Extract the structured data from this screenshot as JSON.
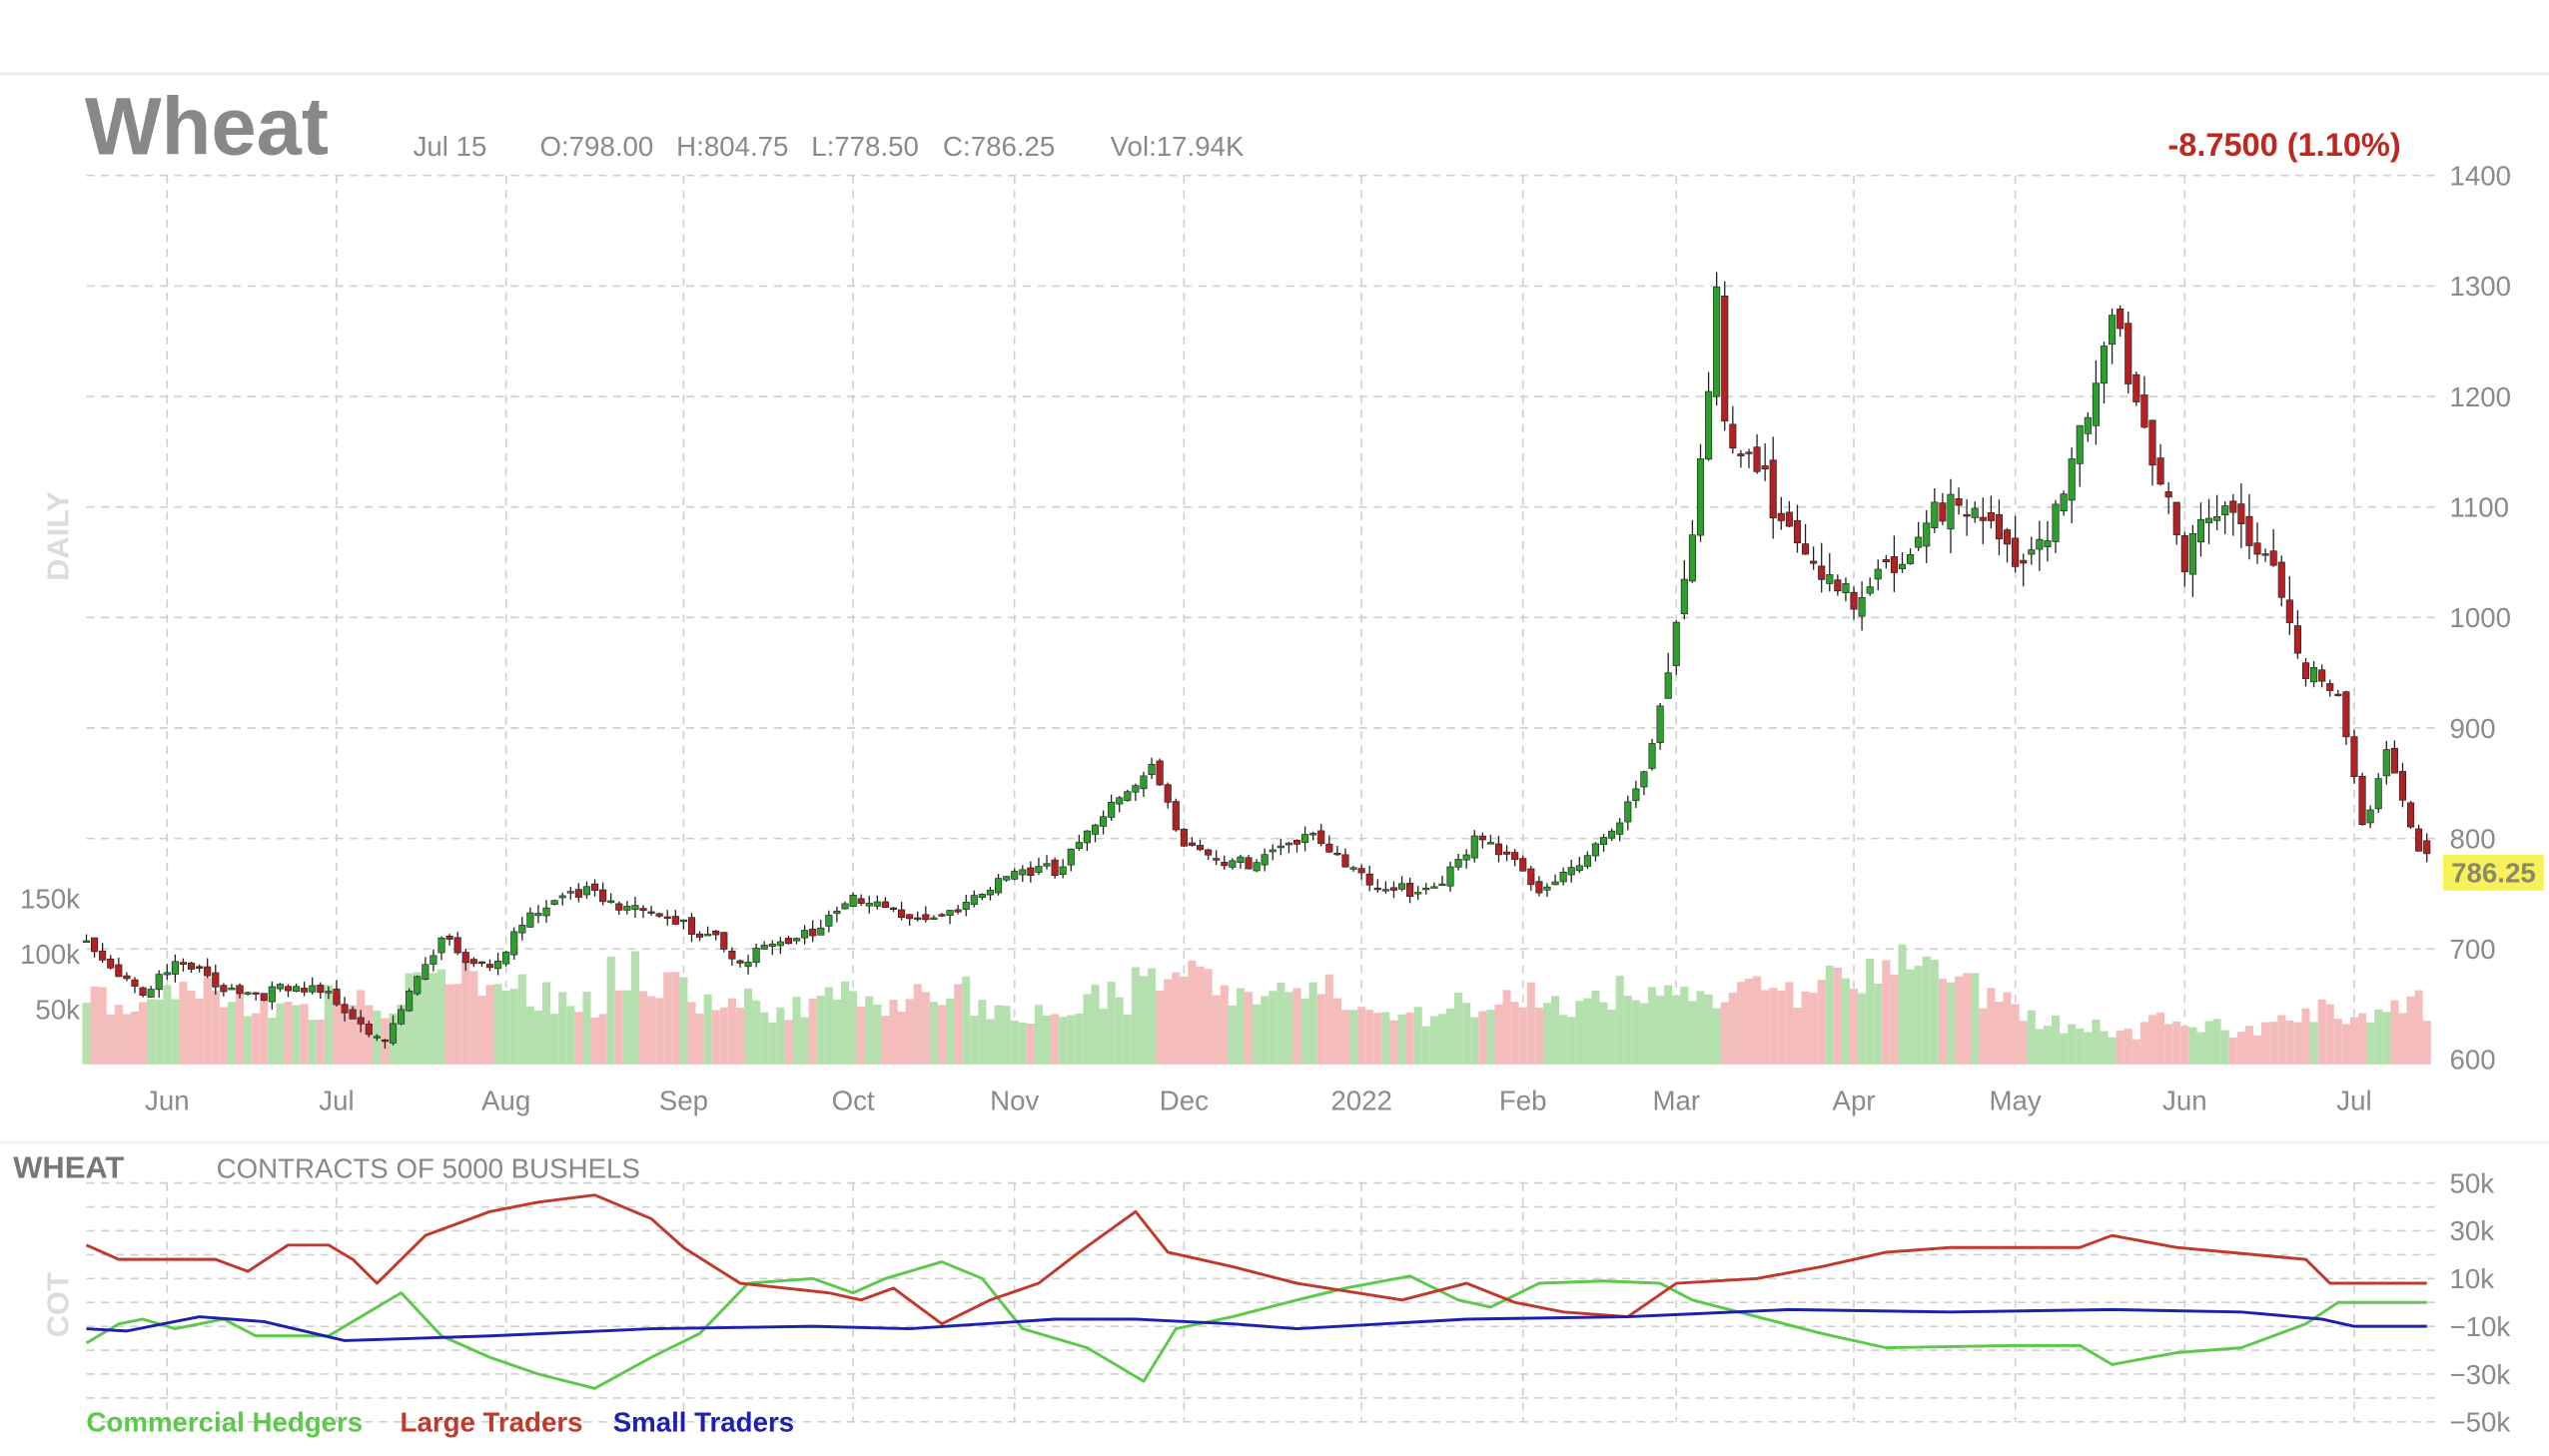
{
  "header": {
    "title": "Wheat",
    "date": "Jul 15",
    "open": "O:798.00",
    "high": "H:804.75",
    "low": "L:778.50",
    "close": "C:786.25",
    "volume": "Vol:17.94K",
    "change": "-8.7500 (1.10%)",
    "last_price": "786.25",
    "panel_label": "DAILY"
  },
  "cot": {
    "title": "WHEAT",
    "subtitle": "CONTRACTS OF 5000 BUSHELS",
    "panel_label": "COT",
    "legend": [
      "Commercial Hedgers",
      "Large Traders",
      "Small Traders"
    ]
  },
  "colors": {
    "up": "#2e9e2e",
    "down": "#b22222",
    "vol_up": "#b4e0ad",
    "vol_down": "#f5bcbc",
    "change": "#c0281f",
    "commercial": "#5cc94a",
    "large": "#c0392b",
    "small": "#1f1fb0",
    "price_tag_bg": "#f7f25a"
  },
  "chart_data": [
    {
      "type": "candlestick",
      "title": "Wheat",
      "ylim": [
        600,
        1400
      ],
      "y_ticks": [
        600,
        700,
        800,
        900,
        1000,
        1100,
        1200,
        1300,
        1400
      ],
      "x_ticks": [
        {
          "label": "Jun",
          "day": 10
        },
        {
          "label": "Jul",
          "day": 31
        },
        {
          "label": "Aug",
          "day": 52
        },
        {
          "label": "Sep",
          "day": 74
        },
        {
          "label": "Oct",
          "day": 95
        },
        {
          "label": "Nov",
          "day": 115
        },
        {
          "label": "Dec",
          "day": 136
        },
        {
          "label": "2022",
          "day": 158
        },
        {
          "label": "Feb",
          "day": 178
        },
        {
          "label": "Mar",
          "day": 197
        },
        {
          "label": "Apr",
          "day": 219
        },
        {
          "label": "May",
          "day": 239
        },
        {
          "label": "Jun",
          "day": 260
        },
        {
          "label": "Jul",
          "day": 281
        }
      ],
      "days": 290,
      "close_path": [
        [
          0,
          706
        ],
        [
          7,
          662
        ],
        [
          11,
          684
        ],
        [
          19,
          662
        ],
        [
          30,
          659
        ],
        [
          37,
          618
        ],
        [
          44,
          706
        ],
        [
          50,
          684
        ],
        [
          54,
          721
        ],
        [
          62,
          757
        ],
        [
          70,
          728
        ],
        [
          78,
          713
        ],
        [
          81,
          691
        ],
        [
          88,
          706
        ],
        [
          95,
          750
        ],
        [
          103,
          721
        ],
        [
          112,
          757
        ],
        [
          120,
          772
        ],
        [
          124,
          809
        ],
        [
          132,
          860
        ],
        [
          136,
          801
        ],
        [
          144,
          772
        ],
        [
          152,
          809
        ],
        [
          160,
          750
        ],
        [
          167,
          757
        ],
        [
          172,
          801
        ],
        [
          180,
          757
        ],
        [
          189,
          801
        ],
        [
          193,
          853
        ],
        [
          196,
          956
        ],
        [
          199,
          1088
        ],
        [
          202,
          1279
        ],
        [
          203,
          1162
        ],
        [
          207,
          1118
        ],
        [
          211,
          1103
        ],
        [
          217,
          1015
        ],
        [
          220,
          1000
        ],
        [
          224,
          1044
        ],
        [
          229,
          1110
        ],
        [
          234,
          1081
        ],
        [
          240,
          1050
        ],
        [
          244,
          1103
        ],
        [
          248,
          1176
        ],
        [
          251,
          1272
        ],
        [
          255,
          1185
        ],
        [
          260,
          1059
        ],
        [
          264,
          1088
        ],
        [
          271,
          1066
        ],
        [
          275,
          956
        ],
        [
          279,
          926
        ],
        [
          282,
          809
        ],
        [
          285,
          882
        ],
        [
          289,
          794
        ],
        [
          290,
          786.25
        ]
      ],
      "last_candle": {
        "open": 798.0,
        "high": 804.75,
        "low": 778.5,
        "close": 786.25
      }
    },
    {
      "type": "bar",
      "title": "Volume",
      "ylim": [
        0,
        150
      ],
      "y_ticks": [
        {
          "value": 50,
          "label": "50k"
        },
        {
          "value": 100,
          "label": "100k"
        },
        {
          "value": 150,
          "label": "150k"
        }
      ],
      "unit": "k",
      "values_per_5_days": [
        60,
        55,
        70,
        65,
        55,
        50,
        60,
        45,
        70,
        75,
        80,
        60,
        55,
        85,
        70,
        55,
        60,
        50,
        65,
        55,
        60,
        70,
        50,
        45,
        55,
        60,
        75,
        80,
        65,
        60,
        70,
        55,
        50,
        45,
        55,
        60,
        50,
        55,
        65,
        60,
        55,
        70,
        60,
        80,
        85,
        95,
        90,
        60,
        40,
        35,
        30,
        40,
        35,
        30,
        45,
        50,
        45,
        55,
        50
      ]
    },
    {
      "type": "line",
      "title": "COT",
      "ylim": [
        -50,
        50
      ],
      "y_ticks": [
        {
          "value": 50,
          "label": "50k"
        },
        {
          "value": 30,
          "label": "30k"
        },
        {
          "value": 10,
          "label": "10k"
        },
        {
          "value": -10,
          "label": "−10k"
        },
        {
          "value": -30,
          "label": "−30k"
        },
        {
          "value": -50,
          "label": "−50k"
        }
      ],
      "series": [
        {
          "name": "Commercial Hedgers",
          "points": [
            [
              0,
              -17
            ],
            [
              4,
              -9
            ],
            [
              7,
              -7
            ],
            [
              11,
              -11
            ],
            [
              17,
              -7
            ],
            [
              21,
              -14
            ],
            [
              30,
              -14
            ],
            [
              36,
              -2
            ],
            [
              39,
              4
            ],
            [
              44,
              -14
            ],
            [
              50,
              -23
            ],
            [
              56,
              -30
            ],
            [
              63,
              -36
            ],
            [
              70,
              -23
            ],
            [
              76,
              -13
            ],
            [
              82,
              8
            ],
            [
              90,
              10
            ],
            [
              95,
              4
            ],
            [
              99,
              10
            ],
            [
              106,
              17
            ],
            [
              111,
              10
            ],
            [
              116,
              -11
            ],
            [
              124,
              -19
            ],
            [
              131,
              -33
            ],
            [
              135,
              -11
            ],
            [
              142,
              -6
            ],
            [
              150,
              1
            ],
            [
              156,
              6
            ],
            [
              164,
              11
            ],
            [
              170,
              1
            ],
            [
              174,
              -2
            ],
            [
              180,
              8
            ],
            [
              188,
              9
            ],
            [
              195,
              8
            ],
            [
              199,
              1
            ],
            [
              207,
              -6
            ],
            [
              215,
              -13
            ],
            [
              223,
              -19
            ],
            [
              239,
              -18
            ],
            [
              247,
              -18
            ],
            [
              251,
              -26
            ],
            [
              259,
              -21
            ],
            [
              267,
              -19
            ],
            [
              275,
              -9
            ],
            [
              279,
              0
            ],
            [
              290,
              0
            ]
          ]
        },
        {
          "name": "Large Traders",
          "points": [
            [
              0,
              24
            ],
            [
              4,
              18
            ],
            [
              16,
              18
            ],
            [
              20,
              13
            ],
            [
              25,
              24
            ],
            [
              30,
              24
            ],
            [
              33,
              18
            ],
            [
              36,
              8
            ],
            [
              42,
              28
            ],
            [
              50,
              38
            ],
            [
              56,
              42
            ],
            [
              63,
              45
            ],
            [
              70,
              35
            ],
            [
              74,
              23
            ],
            [
              81,
              8
            ],
            [
              92,
              4
            ],
            [
              96,
              1
            ],
            [
              100,
              6
            ],
            [
              106,
              -9
            ],
            [
              112,
              1
            ],
            [
              118,
              8
            ],
            [
              123,
              21
            ],
            [
              130,
              38
            ],
            [
              134,
              21
            ],
            [
              142,
              15
            ],
            [
              150,
              8
            ],
            [
              163,
              1
            ],
            [
              171,
              8
            ],
            [
              177,
              0
            ],
            [
              183,
              -4
            ],
            [
              191,
              -6
            ],
            [
              197,
              8
            ],
            [
              207,
              10
            ],
            [
              215,
              15
            ],
            [
              223,
              21
            ],
            [
              231,
              23
            ],
            [
              247,
              23
            ],
            [
              251,
              28
            ],
            [
              259,
              23
            ],
            [
              275,
              18
            ],
            [
              278,
              8
            ],
            [
              290,
              8
            ]
          ]
        },
        {
          "name": "Small Traders",
          "points": [
            [
              0,
              -11
            ],
            [
              5,
              -12
            ],
            [
              14,
              -6
            ],
            [
              22,
              -8
            ],
            [
              32,
              -16
            ],
            [
              50,
              -14
            ],
            [
              70,
              -11
            ],
            [
              90,
              -10
            ],
            [
              102,
              -11
            ],
            [
              120,
              -7
            ],
            [
              130,
              -7
            ],
            [
              142,
              -9
            ],
            [
              150,
              -11
            ],
            [
              171,
              -7
            ],
            [
              191,
              -6
            ],
            [
              211,
              -3
            ],
            [
              231,
              -4
            ],
            [
              251,
              -3
            ],
            [
              267,
              -4
            ],
            [
              277,
              -7
            ],
            [
              281,
              -10
            ],
            [
              290,
              -10
            ]
          ]
        }
      ]
    }
  ]
}
